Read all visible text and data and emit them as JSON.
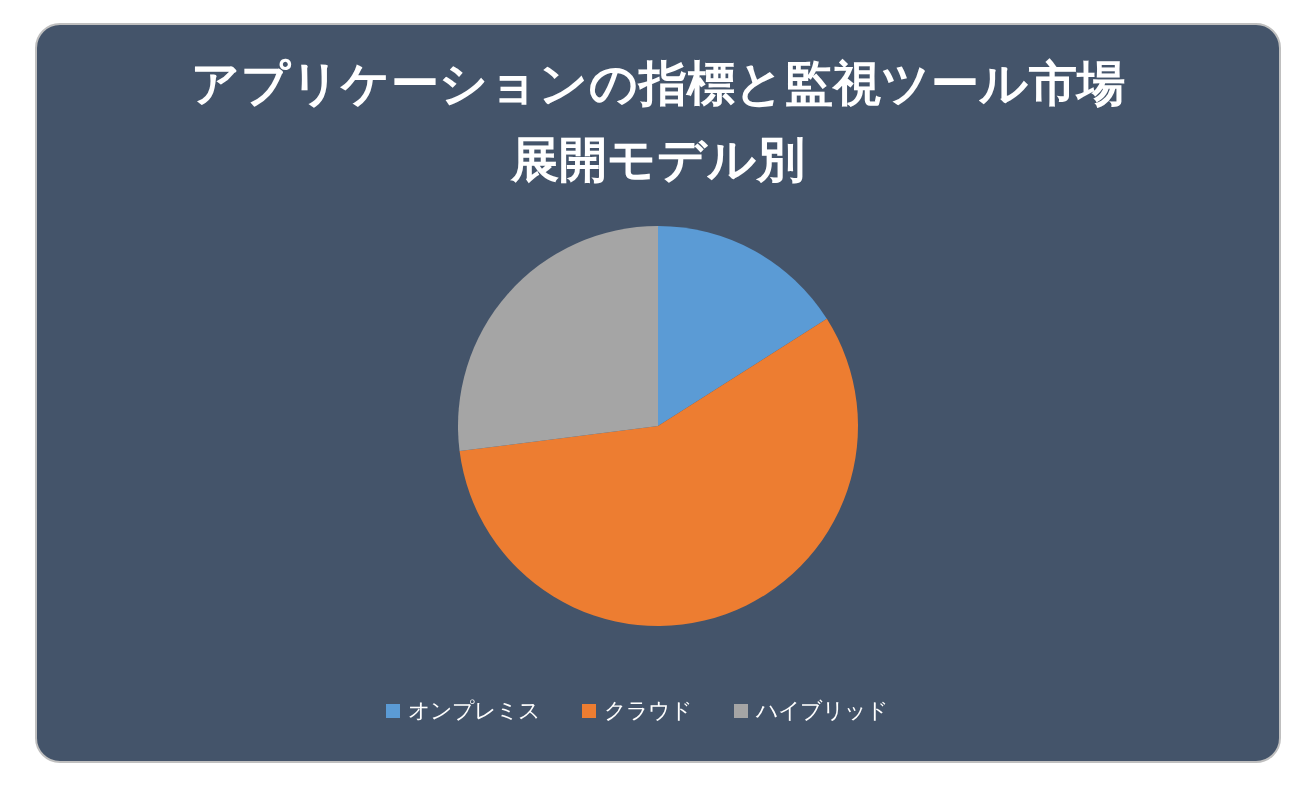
{
  "chart_data": {
    "type": "pie",
    "title": "アプリケーションの指標と監視ツール市場",
    "subtitle": "展開モデル別",
    "categories": [
      "オンプレミス",
      "クラウド",
      "ハイブリッド"
    ],
    "values": [
      16,
      57,
      27
    ],
    "colors": [
      "#5b9bd5",
      "#ed7d31",
      "#a5a5a5"
    ],
    "legend": "bottom"
  }
}
